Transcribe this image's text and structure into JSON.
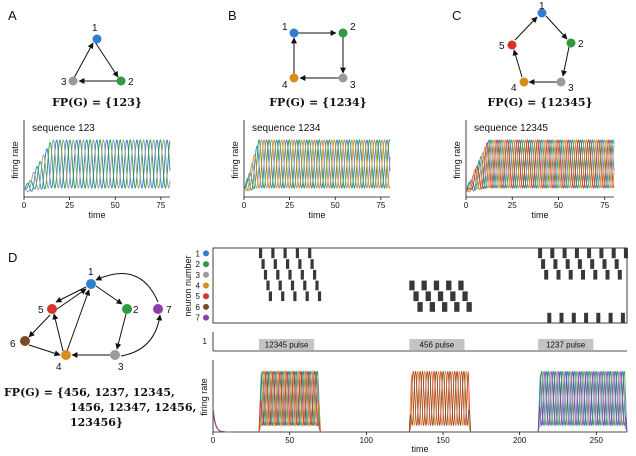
{
  "colors": {
    "n1": "#2f7fd0",
    "n2": "#2f9a3e",
    "n3": "#9a9a9a",
    "n4": "#d88c1a",
    "n5": "#d6332a",
    "n6": "#7a4a22",
    "n7": "#8a3fb0"
  },
  "panels": {
    "A": {
      "letter": "A",
      "nodes": [
        "1",
        "2",
        "3"
      ],
      "fp_text": "FP(G) = {123}",
      "sequence_label": "sequence 123",
      "xlabel": "time",
      "ylabel": "firing rate",
      "xticks": [
        "0",
        "25",
        "50",
        "75"
      ]
    },
    "B": {
      "letter": "B",
      "nodes": [
        "1",
        "2",
        "3",
        "4"
      ],
      "fp_text": "FP(G) = {1234}",
      "sequence_label": "sequence 1234",
      "xlabel": "time",
      "ylabel": "firing rate",
      "xticks": [
        "0",
        "25",
        "50",
        "75"
      ]
    },
    "C": {
      "letter": "C",
      "nodes": [
        "1",
        "2",
        "3",
        "4",
        "5"
      ],
      "fp_text": "FP(G) = {12345}",
      "sequence_label": "sequence 12345",
      "xlabel": "time",
      "ylabel": "firing rate",
      "xticks": [
        "0",
        "25",
        "50",
        "75"
      ]
    },
    "D": {
      "letter": "D",
      "nodes": [
        "1",
        "2",
        "3",
        "4",
        "5",
        "6",
        "7"
      ],
      "fp_line1": "FP(G) = {456, 1237, 12345,",
      "fp_line2": "1456, 12347, 12456,",
      "fp_line3": "123456}",
      "raster_ylabel": "neuron number",
      "raster_rows": [
        "1",
        "2",
        "3",
        "4",
        "5",
        "6",
        "7"
      ],
      "pulse_tick": "1",
      "pulses": [
        "12345 pulse",
        "456 pulse",
        "1237 pulse"
      ],
      "xlabel": "time",
      "ylabel": "firing rate",
      "xticks": [
        "0",
        "50",
        "100",
        "150",
        "200",
        "250"
      ]
    }
  },
  "chart_data": [
    {
      "type": "line",
      "panel": "A",
      "title": "sequence 123",
      "xlabel": "time",
      "ylabel": "firing rate",
      "xlim": [
        0,
        80
      ],
      "x_ticks": [
        0,
        25,
        50,
        75
      ],
      "series_order": [
        1,
        2,
        3
      ],
      "period": 5.5,
      "transient_until": 15,
      "amplitude": 1.0
    },
    {
      "type": "line",
      "panel": "B",
      "title": "sequence 1234",
      "xlabel": "time",
      "ylabel": "firing rate",
      "xlim": [
        0,
        80
      ],
      "x_ticks": [
        0,
        25,
        50,
        75
      ],
      "series_order": [
        1,
        2,
        3,
        4
      ],
      "period": 5.5,
      "transient_until": 8,
      "amplitude": 1.0
    },
    {
      "type": "line",
      "panel": "C",
      "title": "sequence 12345",
      "xlabel": "time",
      "ylabel": "firing rate",
      "xlim": [
        0,
        80
      ],
      "x_ticks": [
        0,
        25,
        50,
        75
      ],
      "series_order": [
        1,
        2,
        3,
        4,
        5
      ],
      "period": 5.5,
      "transient_until": 12,
      "amplitude": 1.0
    },
    {
      "type": "heatmap",
      "panel": "D",
      "ylabel": "neuron number",
      "rows": [
        1,
        2,
        3,
        4,
        5,
        6,
        7
      ],
      "xlim": [
        0,
        270
      ],
      "episodes": [
        {
          "pulse": "12345 pulse",
          "start": 30,
          "end": 70,
          "sequence": [
            1,
            2,
            3,
            4,
            5
          ]
        },
        {
          "pulse": "456 pulse",
          "start": 128,
          "end": 168,
          "sequence": [
            4,
            5,
            6
          ]
        },
        {
          "pulse": "1237 pulse",
          "start": 212,
          "end": 270,
          "sequence": [
            1,
            2,
            3,
            7
          ]
        }
      ]
    },
    {
      "type": "line",
      "panel": "D",
      "xlabel": "time",
      "ylabel": "firing rate",
      "xlim": [
        0,
        270
      ],
      "x_ticks": [
        0,
        50,
        100,
        150,
        200,
        250
      ],
      "period": 4.5,
      "episodes": [
        {
          "start": 30,
          "end": 70,
          "sequence": [
            1,
            2,
            3,
            4,
            5
          ]
        },
        {
          "start": 128,
          "end": 168,
          "sequence": [
            4,
            5,
            6
          ]
        },
        {
          "start": 212,
          "end": 270,
          "sequence": [
            1,
            2,
            3,
            7
          ]
        }
      ]
    }
  ]
}
